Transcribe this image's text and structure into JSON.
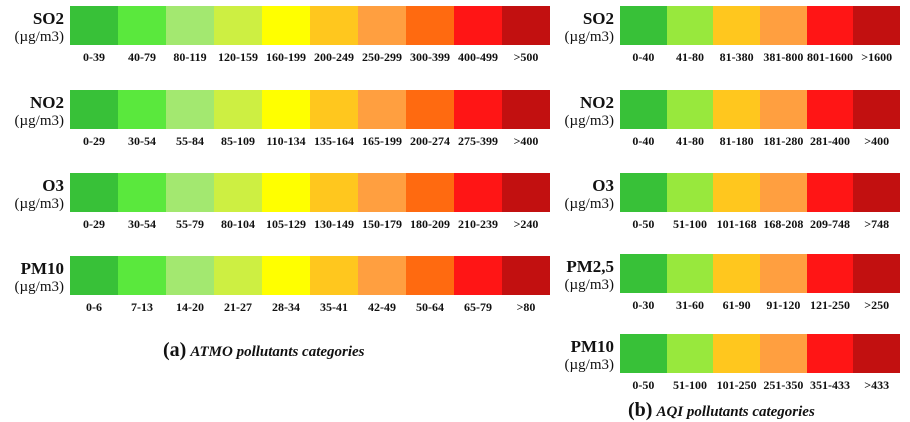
{
  "panel_a": {
    "caption_letter": "(a)",
    "caption_text": "ATMO pollutants categories",
    "colors": [
      "#38c138",
      "#5ae83d",
      "#a3e870",
      "#cdef42",
      "#ffff00",
      "#ffc71e",
      "#ff9f40",
      "#ff6a10",
      "#ff1515",
      "#c21010"
    ],
    "rows": [
      {
        "name": "SO2",
        "unit": "(µg/m3)",
        "labels": [
          "0-39",
          "40-79",
          "80-119",
          "120-159",
          "160-199",
          "200-249",
          "250-299",
          "300-399",
          "400-499",
          ">500"
        ]
      },
      {
        "name": "NO2",
        "unit": "(µg/m3)",
        "labels": [
          "0-29",
          "30-54",
          "55-84",
          "85-109",
          "110-134",
          "135-164",
          "165-199",
          "200-274",
          "275-399",
          ">400"
        ]
      },
      {
        "name": "O3",
        "unit": "(µg/m3)",
        "labels": [
          "0-29",
          "30-54",
          "55-79",
          "80-104",
          "105-129",
          "130-149",
          "150-179",
          "180-209",
          "210-239",
          ">240"
        ]
      },
      {
        "name": "PM10",
        "unit": "(µg/m3)",
        "labels": [
          "0-6",
          "7-13",
          "14-20",
          "21-27",
          "28-34",
          "35-41",
          "42-49",
          "50-64",
          "65-79",
          ">80"
        ]
      }
    ]
  },
  "panel_b": {
    "caption_letter": "(b)",
    "caption_text": "AQI pollutants categories",
    "colors": [
      "#38c138",
      "#98e83d",
      "#ffc71e",
      "#ff9f40",
      "#ff1515",
      "#c21010"
    ],
    "rows": [
      {
        "name": "SO2",
        "unit": "(µg/m3)",
        "labels": [
          "0-40",
          "41-80",
          "81-380",
          "381-800",
          "801-1600",
          ">1600"
        ]
      },
      {
        "name": "NO2",
        "unit": "(µg/m3)",
        "labels": [
          "0-40",
          "41-80",
          "81-180",
          "181-280",
          "281-400",
          ">400"
        ]
      },
      {
        "name": "O3",
        "unit": "(µg/m3)",
        "labels": [
          "0-50",
          "51-100",
          "101-168",
          "168-208",
          "209-748",
          ">748"
        ]
      },
      {
        "name": "PM2,5",
        "unit": "(µg/m3)",
        "labels": [
          "0-30",
          "31-60",
          "61-90",
          "91-120",
          "121-250",
          ">250"
        ]
      },
      {
        "name": "PM10",
        "unit": "(µg/m3)",
        "labels": [
          "0-50",
          "51-100",
          "101-250",
          "251-350",
          "351-433",
          ">433"
        ]
      }
    ]
  }
}
